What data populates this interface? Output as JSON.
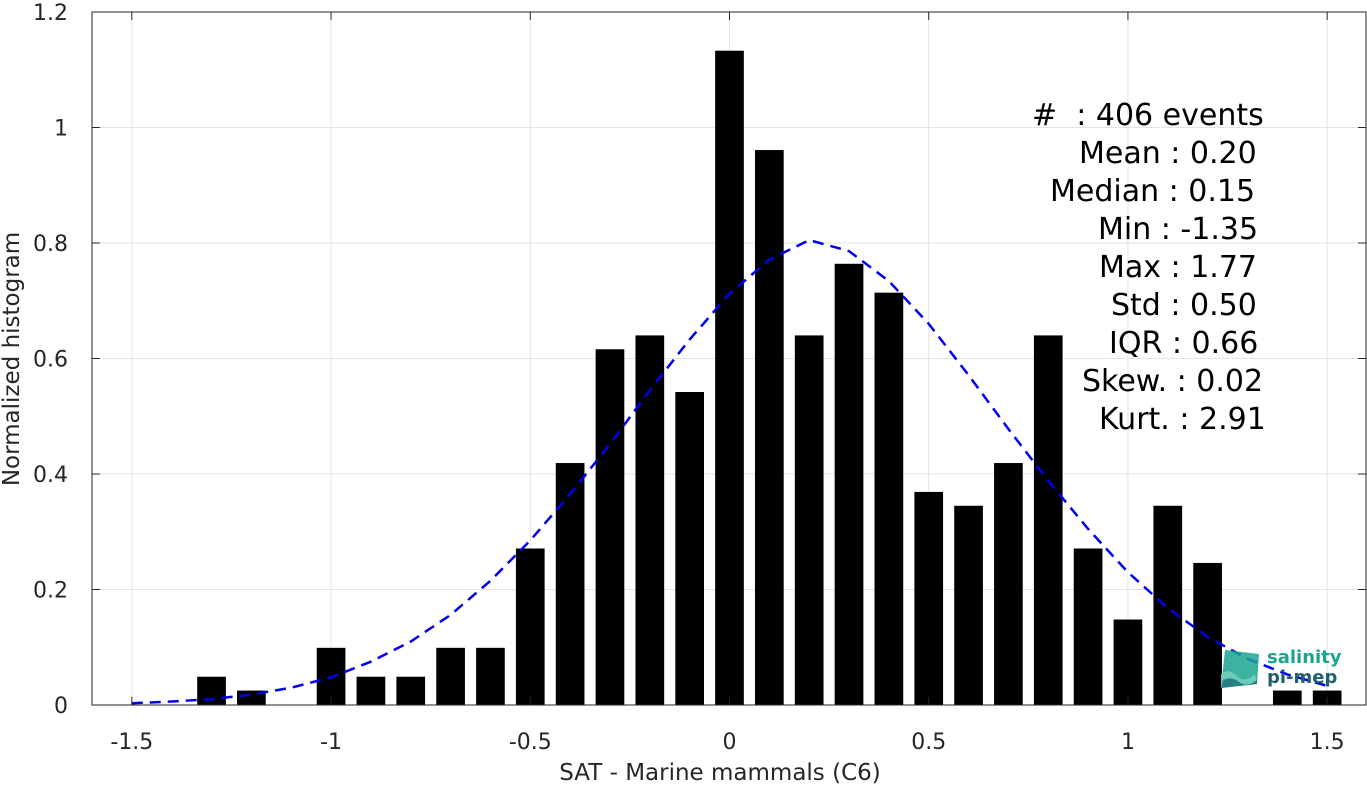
{
  "chart_data": {
    "type": "bar",
    "xlabel": "SAT - Marine mammals (C6)",
    "ylabel": "Normalized histogram",
    "xlim": [
      -1.6,
      1.6
    ],
    "ylim": [
      0,
      1.2
    ],
    "xticks": [
      -1.5,
      -1,
      -0.5,
      0,
      0.5,
      1,
      1.5
    ],
    "xtick_labels": [
      "-1.5",
      "-1",
      "-0.5",
      "0",
      "0.5",
      "1",
      "1.5"
    ],
    "yticks": [
      0,
      0.2,
      0.4,
      0.6,
      0.8,
      1,
      1.2
    ],
    "ytick_labels": [
      "0",
      "0.2",
      "0.4",
      "0.6",
      "0.8",
      "1",
      "1.2"
    ],
    "grid": true,
    "bar_color": "#000000",
    "bins": [
      {
        "x": -1.3,
        "y": 0.049
      },
      {
        "x": -1.2,
        "y": 0.025
      },
      {
        "x": -1.0,
        "y": 0.099
      },
      {
        "x": -0.9,
        "y": 0.049
      },
      {
        "x": -0.8,
        "y": 0.049
      },
      {
        "x": -0.7,
        "y": 0.099
      },
      {
        "x": -0.6,
        "y": 0.099
      },
      {
        "x": -0.5,
        "y": 0.271
      },
      {
        "x": -0.4,
        "y": 0.419
      },
      {
        "x": -0.3,
        "y": 0.616
      },
      {
        "x": -0.2,
        "y": 0.64
      },
      {
        "x": -0.1,
        "y": 0.542
      },
      {
        "x": 0.0,
        "y": 1.133
      },
      {
        "x": 0.1,
        "y": 0.961
      },
      {
        "x": 0.2,
        "y": 0.64
      },
      {
        "x": 0.3,
        "y": 0.764
      },
      {
        "x": 0.4,
        "y": 0.714
      },
      {
        "x": 0.5,
        "y": 0.369
      },
      {
        "x": 0.6,
        "y": 0.345
      },
      {
        "x": 0.7,
        "y": 0.419
      },
      {
        "x": 0.8,
        "y": 0.64
      },
      {
        "x": 0.9,
        "y": 0.271
      },
      {
        "x": 1.0,
        "y": 0.148
      },
      {
        "x": 1.1,
        "y": 0.345
      },
      {
        "x": 1.2,
        "y": 0.246
      },
      {
        "x": 1.4,
        "y": 0.025
      },
      {
        "x": 1.5,
        "y": 0.025
      }
    ],
    "fit_curve": {
      "style": "dashed",
      "color": "#0000ee",
      "points": [
        [
          -1.5,
          0.003
        ],
        [
          -1.4,
          0.006
        ],
        [
          -1.3,
          0.01
        ],
        [
          -1.2,
          0.018
        ],
        [
          -1.1,
          0.03
        ],
        [
          -1.0,
          0.048
        ],
        [
          -0.9,
          0.075
        ],
        [
          -0.8,
          0.11
        ],
        [
          -0.7,
          0.156
        ],
        [
          -0.6,
          0.215
        ],
        [
          -0.5,
          0.285
        ],
        [
          -0.4,
          0.365
        ],
        [
          -0.3,
          0.452
        ],
        [
          -0.2,
          0.545
        ],
        [
          -0.1,
          0.633
        ],
        [
          0.0,
          0.712
        ],
        [
          0.1,
          0.771
        ],
        [
          0.2,
          0.805
        ],
        [
          0.3,
          0.786
        ],
        [
          0.4,
          0.734
        ],
        [
          0.5,
          0.66
        ],
        [
          0.6,
          0.571
        ],
        [
          0.7,
          0.478
        ],
        [
          0.8,
          0.388
        ],
        [
          0.9,
          0.305
        ],
        [
          1.0,
          0.23
        ],
        [
          1.1,
          0.168
        ],
        [
          1.2,
          0.118
        ],
        [
          1.3,
          0.08
        ],
        [
          1.4,
          0.053
        ],
        [
          1.5,
          0.033
        ]
      ]
    }
  },
  "stats": [
    "#  : 406 events",
    "Mean : 0.20",
    "Median : 0.15",
    "Min : -1.35",
    "Max : 1.77",
    "Std : 0.50",
    "IQR : 0.66",
    "Skew. : 0.02",
    "Kurt. : 2.91"
  ],
  "logo": {
    "line1": "salinity",
    "line2": "pi-mep",
    "colors": {
      "primary": "#1aa58f",
      "secondary": "#1f5f6e"
    }
  }
}
